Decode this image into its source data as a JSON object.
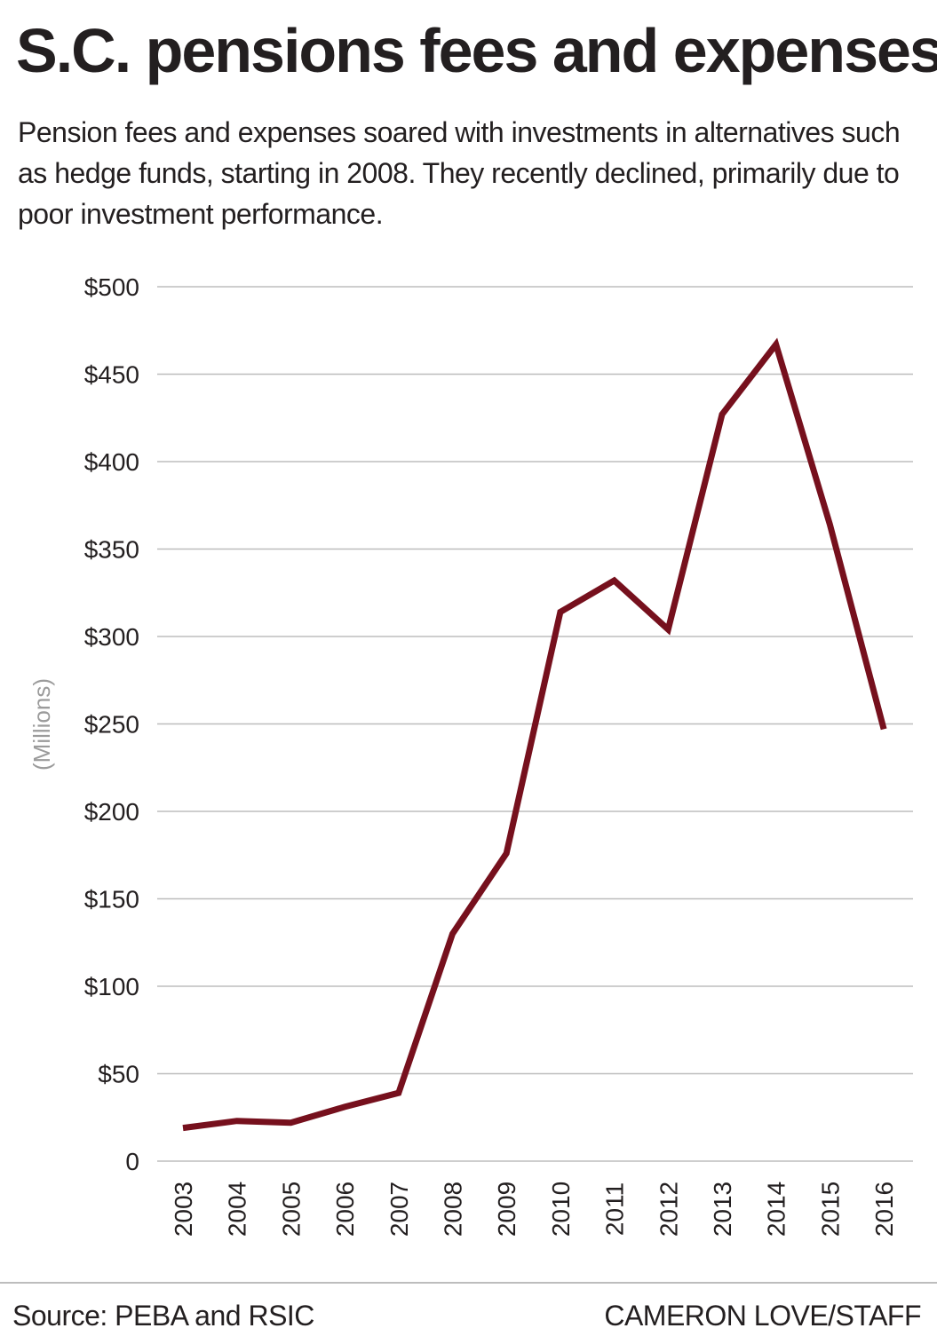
{
  "header": {
    "title": "S.C. pensions fees and expenses",
    "subtitle": "Pension fees and expenses soared with investments in alternatives such as hedge funds, starting in 2008. They recently declined, primarily due to poor investment performance."
  },
  "footer": {
    "source": "Source: PEBA and RSIC",
    "credit": "CAMERON LOVE/STAFF"
  },
  "colors": {
    "line": "#76101d",
    "grid": "#bdbdbd",
    "text": "#231f20",
    "ylabel": "#9b9b9b"
  },
  "chart_data": {
    "type": "line",
    "title": "S.C. pensions fees and expenses",
    "xlabel": "",
    "ylabel": "(Millions)",
    "ylim": [
      0,
      500
    ],
    "grid": true,
    "x": [
      "2003",
      "2004",
      "2005",
      "2006",
      "2007",
      "2008",
      "2009",
      "2010",
      "2011",
      "2012",
      "2013",
      "2014",
      "2015",
      "2016"
    ],
    "y_ticks": [
      0,
      50,
      100,
      150,
      200,
      250,
      300,
      350,
      400,
      450,
      500
    ],
    "y_tick_labels": [
      "0",
      "$50",
      "$100",
      "$150",
      "$200",
      "$250",
      "$300",
      "$350",
      "$400",
      "$450",
      "$500"
    ],
    "series": [
      {
        "name": "Fees and expenses",
        "values": [
          19,
          23,
          22,
          31,
          39,
          130,
          176,
          314,
          332,
          304,
          427,
          467,
          364,
          247
        ]
      }
    ]
  }
}
